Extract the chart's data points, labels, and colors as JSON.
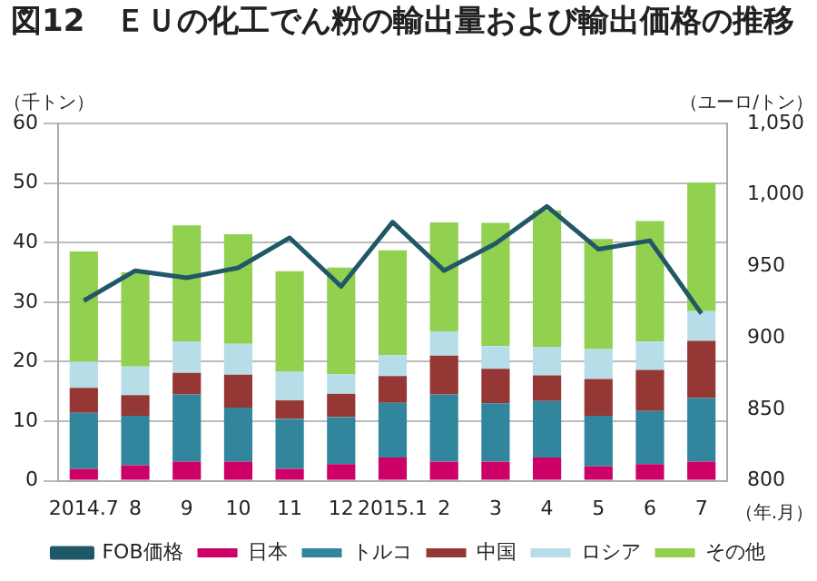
{
  "chart_data": {
    "type": "bar",
    "title": "図12　ＥＵの化工でん粉の輸出量および輸出価格の推移",
    "xlabel": "（年.月）",
    "ylabel": "（千トン）",
    "y2label": "（ユーロ/トン）",
    "categories": [
      "2014.7",
      "8",
      "9",
      "10",
      "11",
      "12",
      "2015.1",
      "2",
      "3",
      "4",
      "5",
      "6",
      "7"
    ],
    "stacked": true,
    "series": [
      {
        "name": "日本",
        "color": "#cc0066",
        "values": [
          2.0,
          2.6,
          3.2,
          3.2,
          2.0,
          2.8,
          3.9,
          3.2,
          3.2,
          3.9,
          2.4,
          2.8,
          3.2
        ]
      },
      {
        "name": "トルコ",
        "color": "#31859c",
        "values": [
          9.4,
          8.3,
          11.3,
          9.1,
          8.4,
          7.9,
          9.2,
          11.3,
          9.8,
          9.5,
          8.5,
          8.9,
          10.7
        ]
      },
      {
        "name": "中国",
        "color": "#953735",
        "values": [
          4.2,
          3.5,
          3.6,
          5.5,
          3.1,
          3.9,
          4.5,
          6.5,
          5.8,
          4.3,
          6.2,
          6.9,
          9.6
        ]
      },
      {
        "name": "ロシア",
        "color": "#b7dee8",
        "values": [
          4.4,
          4.8,
          5.3,
          5.2,
          4.8,
          3.3,
          3.5,
          4.1,
          3.8,
          4.8,
          5.0,
          4.8,
          5.0
        ]
      },
      {
        "name": "その他",
        "color": "#92d050",
        "values": [
          18.5,
          15.8,
          19.5,
          18.4,
          16.9,
          17.9,
          17.6,
          18.3,
          20.7,
          22.9,
          18.5,
          20.2,
          21.6
        ]
      },
      {
        "name": "FOB価格",
        "type": "line",
        "axis": "y2",
        "color": "#215868",
        "values": [
          926,
          947,
          942,
          949,
          970,
          936,
          981,
          947,
          966,
          992,
          962,
          968,
          917
        ]
      }
    ],
    "ylim": [
      0,
      60
    ],
    "yticks": [
      0,
      10,
      20,
      30,
      40,
      50,
      60
    ],
    "y2lim": [
      800,
      1050
    ],
    "y2ticks": [
      800,
      850,
      900,
      950,
      {
        "value": 1000,
        "label": "1,000"
      },
      {
        "value": 1050,
        "label": "1,050"
      }
    ],
    "grid": "y",
    "legend": "bottom",
    "marker": "none",
    "line_style": "solid"
  }
}
